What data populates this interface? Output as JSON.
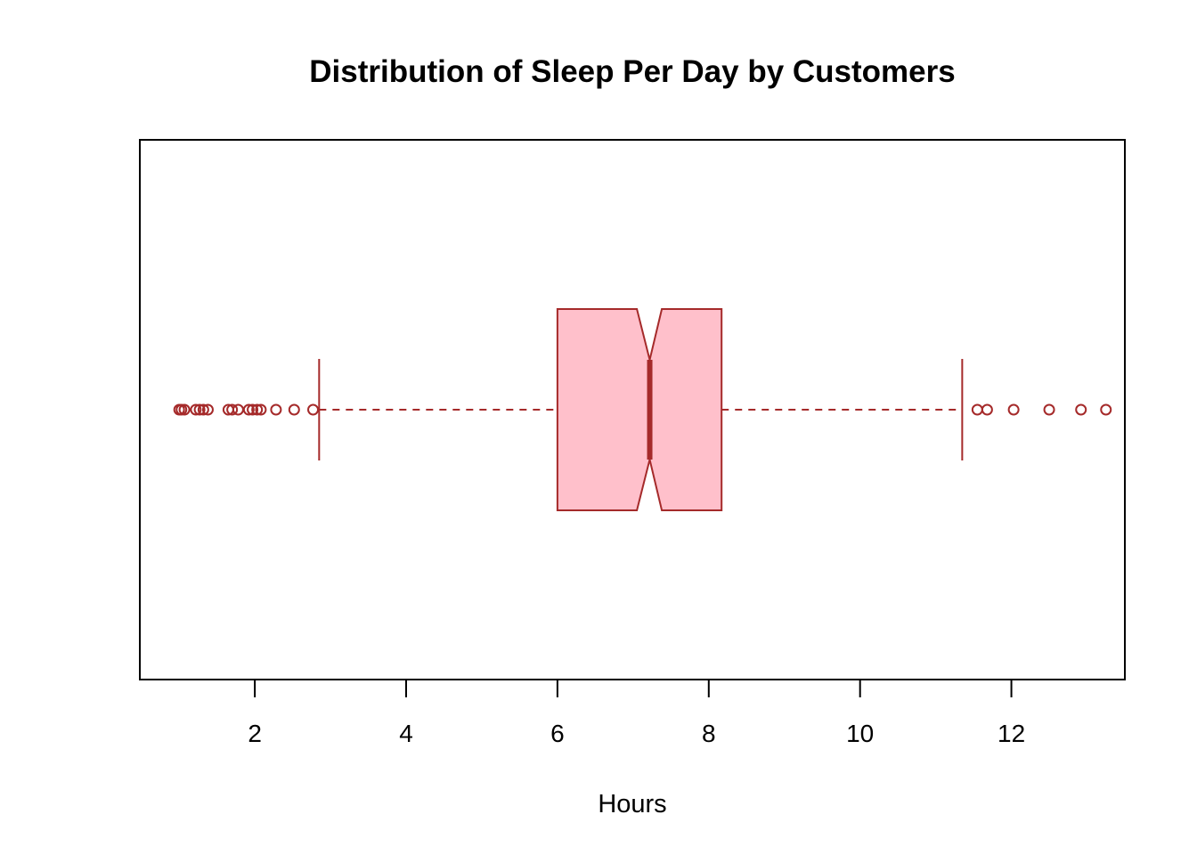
{
  "chart_data": {
    "type": "boxplot",
    "orientation": "horizontal",
    "title": "Distribution of Sleep Per Day by Customers",
    "xlabel": "Hours",
    "ylabel": "",
    "xlim": [
      0.48,
      13.5
    ],
    "x_ticks": [
      2,
      4,
      6,
      8,
      10,
      12
    ],
    "x_tick_labels": [
      "2",
      "4",
      "6",
      "8",
      "10",
      "12"
    ],
    "notched": true,
    "box": {
      "whisker_low": 2.85,
      "q1": 6.0,
      "median": 7.22,
      "q3": 8.17,
      "whisker_high": 11.35,
      "notch_low": 7.05,
      "notch_high": 7.38
    },
    "outliers": [
      1.0,
      1.03,
      1.07,
      1.22,
      1.27,
      1.32,
      1.38,
      1.65,
      1.7,
      1.78,
      1.92,
      1.97,
      2.03,
      2.08,
      2.28,
      2.52,
      2.77,
      11.55,
      11.68,
      12.03,
      12.5,
      12.92,
      13.25
    ],
    "colors": {
      "box_fill": "#FFC0CB",
      "stroke": "#A52A2A"
    }
  }
}
